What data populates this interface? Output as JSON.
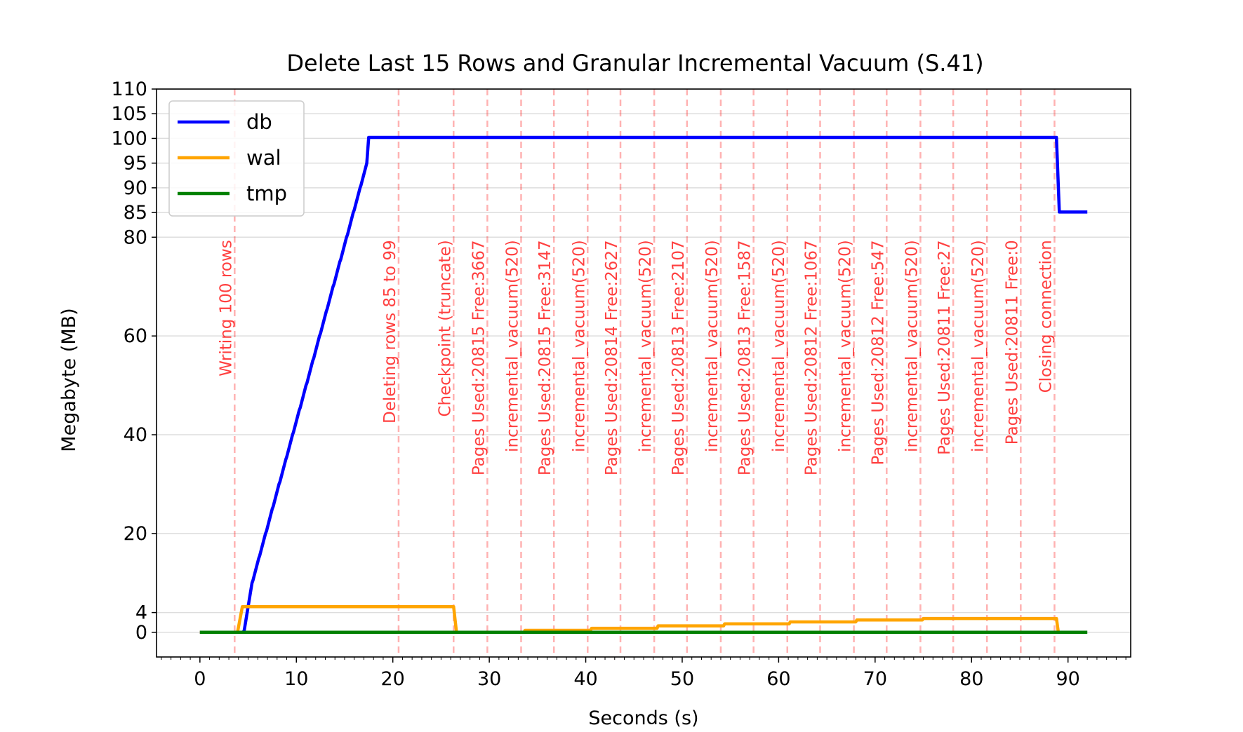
{
  "chart_data": {
    "type": "line",
    "title": "Delete Last 15 Rows and Granular Incremental Vacuum (S.41)",
    "xlabel": "Seconds (s)",
    "ylabel": "Megabyte (MB)",
    "xlim": [
      -4.5,
      96.5
    ],
    "ylim": [
      -5,
      110
    ],
    "xticks": [
      0,
      10,
      20,
      30,
      40,
      50,
      60,
      70,
      80,
      90
    ],
    "xtick_labels": [
      "0",
      "10",
      "20",
      "30",
      "40",
      "50",
      "60",
      "70",
      "80",
      "90"
    ],
    "yticks": [
      0,
      4,
      20,
      40,
      60,
      80,
      85,
      90,
      95,
      100,
      105,
      110
    ],
    "ytick_labels": [
      "0",
      "4",
      "20",
      "40",
      "60",
      "80",
      "85",
      "90",
      "95",
      "100",
      "105",
      "110"
    ],
    "grid": "horizontal",
    "legend_position": "top-left",
    "series": [
      {
        "name": "db",
        "color": "#0000ff",
        "x": [
          0,
          4.5,
          4.6,
          5.4,
          5.5,
          6.1,
          6.2,
          6.8,
          6.9,
          7.5,
          7.6,
          8.2,
          8.3,
          8.9,
          9.0,
          9.6,
          9.7,
          10.3,
          10.4,
          11.0,
          11.1,
          11.7,
          11.8,
          12.4,
          12.5,
          13.1,
          13.2,
          13.8,
          13.9,
          14.5,
          14.6,
          15.2,
          15.3,
          15.9,
          16.0,
          16.6,
          16.7,
          17.3,
          17.5,
          88.8,
          89.1,
          92
        ],
        "y": [
          0,
          0,
          0.5,
          10.0,
          10.5,
          15.0,
          15.5,
          20.0,
          20.5,
          25.0,
          25.5,
          30.0,
          30.5,
          35.0,
          35.5,
          40.0,
          40.5,
          45.0,
          45.5,
          50.0,
          50.5,
          55.0,
          55.5,
          60.0,
          60.5,
          65.0,
          65.5,
          70.0,
          70.5,
          75.0,
          75.5,
          80.0,
          80.5,
          85.0,
          85.5,
          90.0,
          90.5,
          95.0,
          100.2,
          100.2,
          85.1,
          85.1
        ]
      },
      {
        "name": "wal",
        "color": "#ffa500",
        "x": [
          0,
          3.9,
          4.4,
          26.3,
          26.6,
          33.6,
          33.7,
          40.5,
          40.6,
          47.4,
          47.5,
          54.3,
          54.4,
          61.1,
          61.2,
          68.0,
          68.1,
          74.9,
          75.0,
          88.8,
          89.0
        ],
        "y": [
          0,
          0,
          5.2,
          5.2,
          0,
          0,
          0.4,
          0.4,
          0.8,
          0.8,
          1.3,
          1.3,
          1.7,
          1.7,
          2.1,
          2.1,
          2.5,
          2.5,
          2.8,
          2.8,
          0
        ]
      },
      {
        "name": "tmp",
        "color": "#008000",
        "x": [
          0,
          92
        ],
        "y": [
          0,
          0
        ]
      }
    ],
    "annotations": [
      {
        "x": 3.6,
        "label": "Writing 100 rows"
      },
      {
        "x": 20.6,
        "label": "Deleting rows 85 to 99"
      },
      {
        "x": 26.3,
        "label": "Checkpoint (truncate)"
      },
      {
        "x": 29.8,
        "label": "Pages Used:20815 Free:3667"
      },
      {
        "x": 33.3,
        "label": "incremental_vacuum(520)"
      },
      {
        "x": 36.7,
        "label": "Pages Used:20815 Free:3147"
      },
      {
        "x": 40.2,
        "label": "incremental_vacuum(520)"
      },
      {
        "x": 43.6,
        "label": "Pages Used:20814 Free:2627"
      },
      {
        "x": 47.1,
        "label": "incremental_vacuum(520)"
      },
      {
        "x": 50.5,
        "label": "Pages Used:20813 Free:2107"
      },
      {
        "x": 54.0,
        "label": "incremental_vacuum(520)"
      },
      {
        "x": 57.4,
        "label": "Pages Used:20813 Free:1587"
      },
      {
        "x": 60.9,
        "label": "incremental_vacuum(520)"
      },
      {
        "x": 64.3,
        "label": "Pages Used:20812 Free:1067"
      },
      {
        "x": 67.8,
        "label": "incremental_vacuum(520)"
      },
      {
        "x": 71.2,
        "label": "Pages Used:20812 Free:547"
      },
      {
        "x": 74.7,
        "label": "incremental_vacuum(520)"
      },
      {
        "x": 78.1,
        "label": "Pages Used:20811 Free:27"
      },
      {
        "x": 81.6,
        "label": "incremental_vacuum(520)"
      },
      {
        "x": 85.1,
        "label": "Pages Used:20811 Free:0"
      },
      {
        "x": 88.6,
        "label": "Closing connection"
      }
    ],
    "annotation_color": "#ff0000"
  }
}
